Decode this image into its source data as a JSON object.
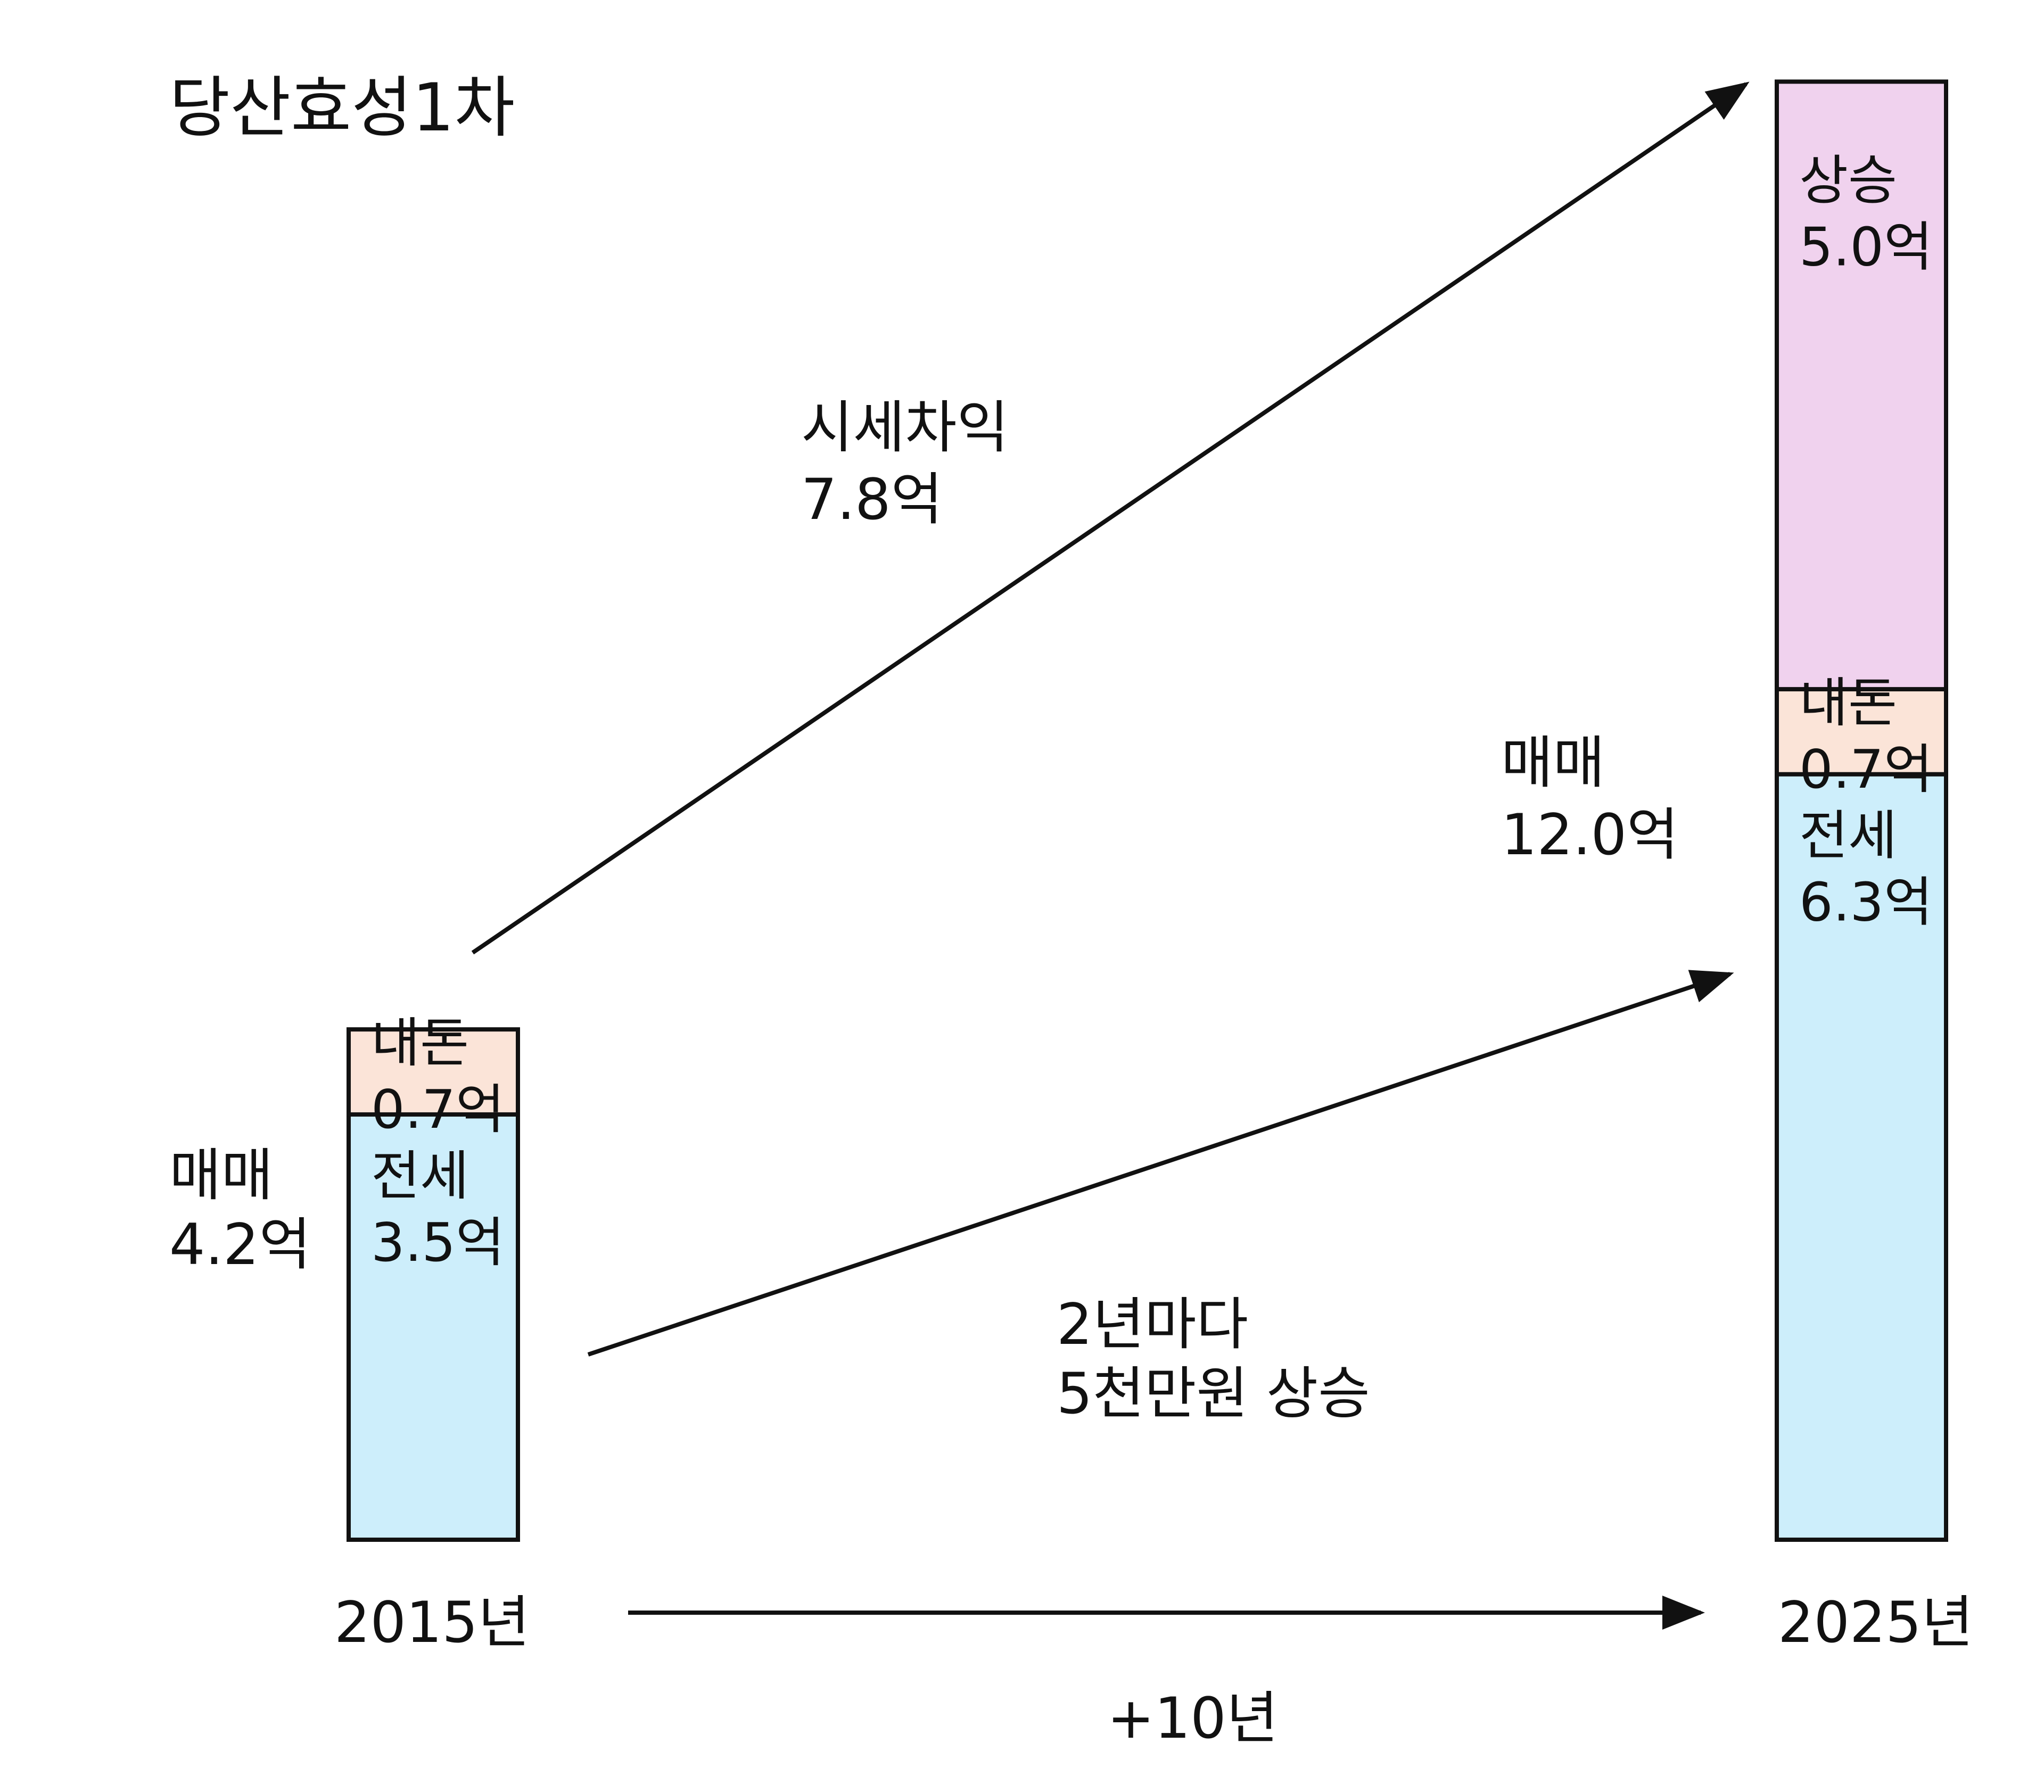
{
  "chart_data": {
    "type": "bar",
    "stacked": true,
    "title": "당산효성1차",
    "unit": "억",
    "categories": [
      "2015년",
      "2025년"
    ],
    "bars": [
      {
        "year": "2015년",
        "total_label": [
          "매매",
          "4.2억"
        ],
        "total": 4.2,
        "segments": [
          {
            "name": "전세",
            "value": 3.5,
            "label": [
              "전세",
              "3.5억"
            ],
            "color": "#cdeefb"
          },
          {
            "name": "내돈",
            "value": 0.7,
            "label": [
              "내돈",
              "0.7억"
            ],
            "color": "#fbe4d8"
          }
        ]
      },
      {
        "year": "2025년",
        "total_label": [
          "매매",
          "12.0억"
        ],
        "total": 12.0,
        "segments": [
          {
            "name": "전세",
            "value": 6.3,
            "label": [
              "전세",
              "6.3억"
            ],
            "color": "#cdeefb"
          },
          {
            "name": "내돈",
            "value": 0.7,
            "label": [
              "내돈",
              "0.7억"
            ],
            "color": "#fbe4d8"
          },
          {
            "name": "상승",
            "value": 5.0,
            "label": [
              "상승",
              "5.0억"
            ],
            "color": "#f0d2ee"
          }
        ]
      }
    ],
    "annotations": {
      "gain": [
        "시세차익",
        "7.8억"
      ],
      "jeonse_growth": [
        "2년마다",
        "5천만원 상승"
      ],
      "duration": "+10년"
    }
  }
}
